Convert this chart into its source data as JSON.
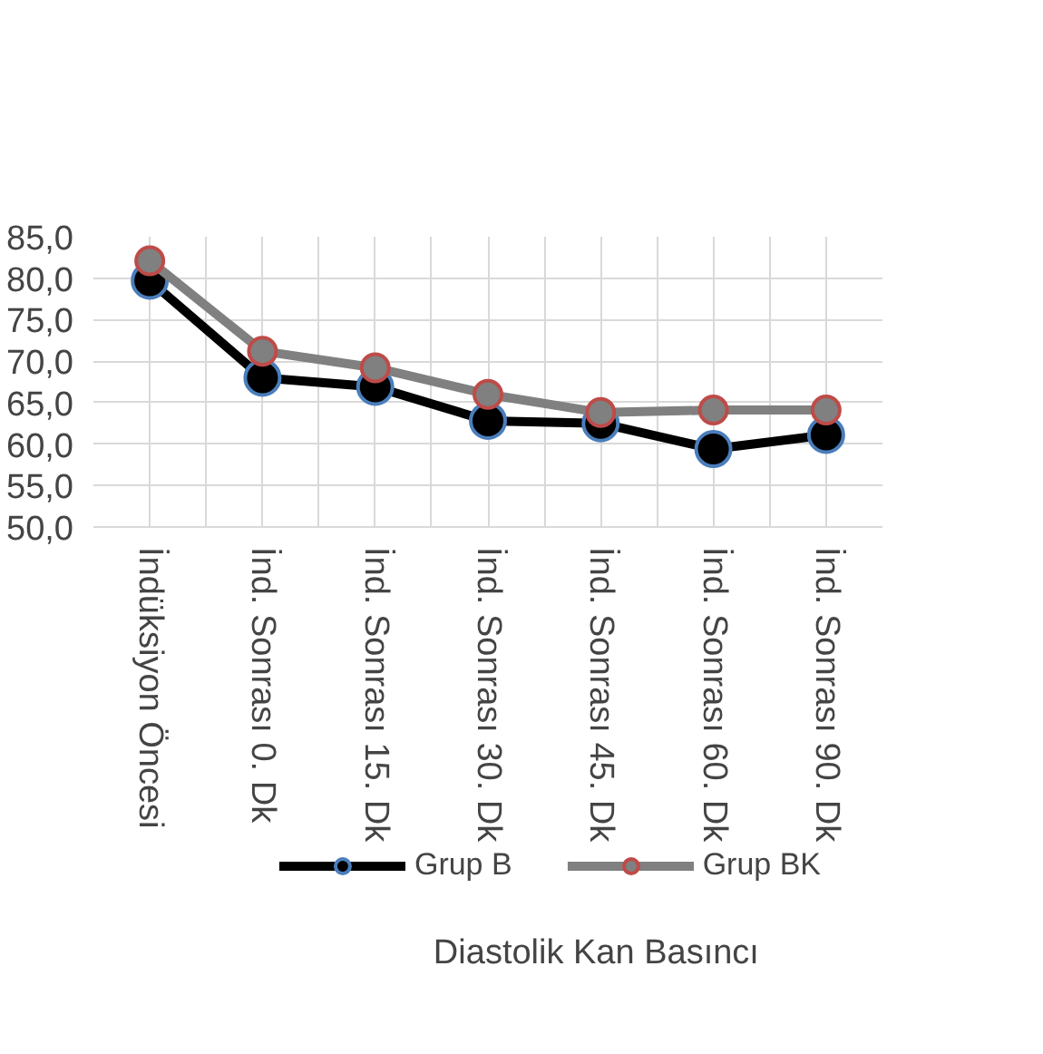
{
  "chart_data": {
    "type": "line",
    "title": "Diastolik Kan Basıncı",
    "categories": [
      "İndüksiyon Öncesi",
      "İnd. Sonrası 0. Dk",
      "İnd. Sonrası 15. Dk",
      "İnd. Sonrası 30. Dk",
      "İnd. Sonrası 45. Dk",
      "İnd. Sonrası 60. Dk",
      "İnd. Sonrası 90. Dk"
    ],
    "series": [
      {
        "name": "Grup B",
        "color": "#000000",
        "values": [
          79.7,
          68.0,
          66.9,
          62.8,
          62.5,
          59.4,
          61.1
        ]
      },
      {
        "name": "Grup BK",
        "color": "#808080",
        "values": [
          82.1,
          71.2,
          69.2,
          66.0,
          63.8,
          64.1,
          64.1
        ]
      }
    ],
    "ylim": [
      50,
      85
    ],
    "yticks": [
      {
        "value": 50,
        "label": "50,0"
      },
      {
        "value": 55,
        "label": "55,0"
      },
      {
        "value": 60,
        "label": "60,0"
      },
      {
        "value": 65,
        "label": "65,0"
      },
      {
        "value": 70,
        "label": "70,0"
      },
      {
        "value": 75,
        "label": "75,0"
      },
      {
        "value": 80,
        "label": "80,0"
      },
      {
        "value": 85,
        "label": "85,0"
      }
    ],
    "grid": true,
    "legend": "bottom",
    "marker": "circle",
    "line_style": "solid"
  }
}
